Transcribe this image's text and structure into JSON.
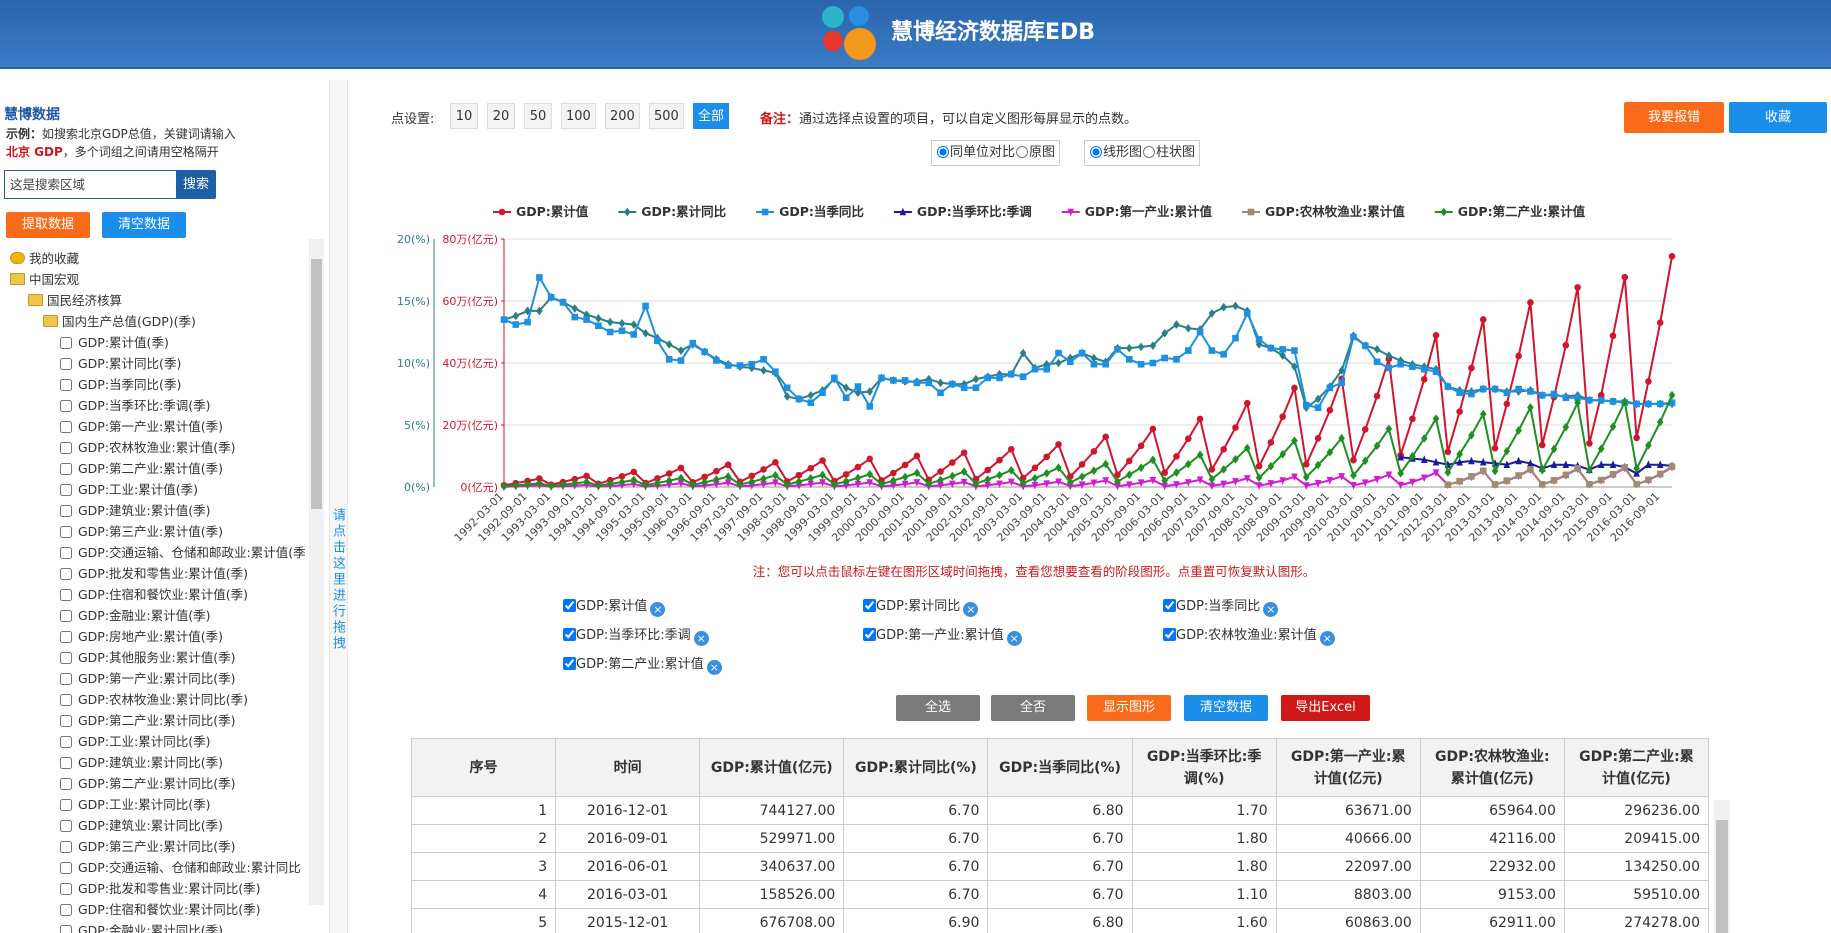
{
  "header": {
    "title": "慧博经济数据库EDB"
  },
  "sidebar": {
    "title": "慧博数据",
    "example_prefix": "示例：",
    "example_text": "如搜索北京GDP总值，关键词请输入",
    "example_keyword": "北京 GDP",
    "example_suffix": "，多个词组之间请用空格隔开",
    "search_placeholder": "这是搜索区域",
    "search_button": "搜索",
    "buttons": [
      "提取数据",
      "清空数据"
    ],
    "tree": {
      "favorites": "我的收藏",
      "root": "中国宏观",
      "group": "国民经济核算",
      "subgroup": "国内生产总值(GDP)(季)",
      "items": [
        "GDP:累计值(季)",
        "GDP:累计同比(季)",
        "GDP:当季同比(季)",
        "GDP:当季环比:季调(季)",
        "GDP:第一产业:累计值(季)",
        "GDP:农林牧渔业:累计值(季)",
        "GDP:第二产业:累计值(季)",
        "GDP:工业:累计值(季)",
        "GDP:建筑业:累计值(季)",
        "GDP:第三产业:累计值(季)",
        "GDP:交通运输、仓储和邮政业:累计值(季",
        "GDP:批发和零售业:累计值(季)",
        "GDP:住宿和餐饮业:累计值(季)",
        "GDP:金融业:累计值(季)",
        "GDP:房地产业:累计值(季)",
        "GDP:其他服务业:累计值(季)",
        "GDP:第一产业:累计同比(季)",
        "GDP:农林牧渔业:累计同比(季)",
        "GDP:第二产业:累计同比(季)",
        "GDP:工业:累计同比(季)",
        "GDP:建筑业:累计同比(季)",
        "GDP:第二产业:累计同比(季)",
        "GDP:工业:累计同比(季)",
        "GDP:建筑业:累计同比(季)",
        "GDP:第三产业:累计同比(季)",
        "GDP:交通运输、仓储和邮政业:累计同比",
        "GDP:批发和零售业:累计同比(季)",
        "GDP:住宿和餐饮业:累计同比(季)",
        "GDP:金融业:累计同比(季)"
      ]
    },
    "drag_hint": "请点击这里进行拖拽"
  },
  "controls": {
    "points_label": "点设置:",
    "points_options": [
      "10",
      "20",
      "50",
      "100",
      "200",
      "500",
      "全部"
    ],
    "note_label": "备注：",
    "note_text": "通过选择点设置的项目，可以自定义图形每屏显示的点数。",
    "buttons": [
      "我要报错",
      "收藏"
    ],
    "compare_options": [
      "同单位对比",
      "原图"
    ],
    "chart_type_options": [
      "线形图",
      "柱状图"
    ]
  },
  "chart_data": {
    "type": "line",
    "note": "注：您可以点击鼠标左键在图形区域时间拖拽，查看您想要查看的阶段图形。点重置可恢复默认图形。",
    "grid": true,
    "categories": [
      "1992-03-01",
      null,
      "1992-09-01",
      null,
      "1993-03-01",
      null,
      "1993-09-01",
      null,
      "1994-03-01",
      null,
      "1994-09-01",
      null,
      "1995-03-01",
      null,
      "1995-09-01",
      null,
      "1996-03-01",
      null,
      "1996-09-01",
      null,
      "1997-03-01",
      null,
      "1997-09-01",
      null,
      "1998-03-01",
      null,
      "1998-09-01",
      null,
      "1999-03-01",
      null,
      "1999-09-01",
      null,
      "2000-03-01",
      null,
      "2000-09-01",
      null,
      "2001-03-01",
      null,
      "2001-09-01",
      null,
      "2002-03-01",
      null,
      "2002-09-01",
      null,
      "2003-03-01",
      null,
      "2003-09-01",
      null,
      "2004-03-01",
      null,
      "2004-09-01",
      null,
      "2005-03-01",
      null,
      "2005-09-01",
      null,
      "2006-03-01",
      null,
      "2006-09-01",
      null,
      "2007-03-01",
      null,
      "2007-09-01",
      null,
      "2008-03-01",
      null,
      "2008-09-01",
      null,
      "2009-03-01",
      null,
      "2009-09-01",
      null,
      "2010-03-01",
      null,
      "2010-09-01",
      null,
      "2011-03-01",
      null,
      "2011-09-01",
      null,
      "2012-03-01",
      null,
      "2012-09-01",
      null,
      "2013-03-01",
      null,
      "2013-09-01",
      null,
      "2014-03-01",
      null,
      "2014-09-01",
      null,
      "2015-03-01",
      null,
      "2015-09-01",
      null,
      "2016-03-01",
      null,
      "2016-09-01",
      null
    ],
    "ylim": [
      0,
      20
    ],
    "yticks": [
      {
        "value": 0,
        "label": "0(%)"
      },
      {
        "value": 5,
        "label": "5(%)"
      },
      {
        "value": 10,
        "label": "10(%)"
      },
      {
        "value": 15,
        "label": "15(%)"
      },
      {
        "value": 20,
        "label": "20(%)"
      }
    ],
    "y2lim": [
      0,
      800000
    ],
    "y2ticks": [
      {
        "value": 0,
        "label": "0(亿元)"
      },
      {
        "value": 200000,
        "label": "20万(亿元)"
      },
      {
        "value": 400000,
        "label": "40万(亿元)"
      },
      {
        "value": 600000,
        "label": "60万(亿元)"
      },
      {
        "value": 800000,
        "label": "80万(亿元)"
      }
    ],
    "series": [
      {
        "name": "GDP:累计值",
        "color": "#d0152e",
        "marker": "circle",
        "axis": "y2",
        "values": [
          5711,
          12238,
          19308,
          27195,
          7491,
          16053,
          25328,
          35673,
          10214,
          21887,
          34533,
          48638,
          12881,
          27603,
          43551,
          61340,
          15081,
          32316,
          50988,
          71814,
          16740,
          35872,
          56598,
          79715,
          17891,
          38338,
          60489,
          85196,
          19018,
          40754,
          64300,
          90564,
          21059,
          45126,
          71199,
          100280,
          23281,
          49888,
          78713,
          110863,
          25561,
          54773,
          86419,
          121717,
          28859,
          61840,
          97570,
          137422,
          33986,
          72828,
          114906,
          161840,
          39337,
          84294,
          132996,
          187319,
          46082,
          98748,
          155802,
          219439,
          56749,
          121604,
          191865,
          270232,
          67098,
          143782,
          226856,
          319516,
          73307,
          157086,
          247848,
          349081,
          86736,
          185864,
          293251,
          413030,
          102753,
          220185,
          347404,
          489301,
          113477,
          243165,
          383661,
          540367,
          125001,
          267860,
          422623,
          595244,
          135235,
          289788,
          457222,
          643974,
          140667,
          296244,
          487774,
          676708,
          158526,
          340637,
          529971,
          744127
        ]
      },
      {
        "name": "GDP:累计同比",
        "color": "#2a7f86",
        "marker": "diamond",
        "axis": "y",
        "values": [
          13.5,
          13.8,
          14.2,
          14.2,
          15.3,
          14.9,
          14.4,
          13.9,
          13.6,
          13.3,
          13.2,
          13.1,
          12.4,
          12.0,
          11.5,
          11.0,
          11.5,
          10.9,
          10.3,
          9.9,
          9.7,
          9.6,
          9.4,
          9.2,
          7.3,
          7.1,
          7.4,
          7.8,
          8.7,
          8.0,
          7.6,
          7.7,
          8.8,
          8.6,
          8.5,
          8.5,
          8.7,
          8.4,
          8.3,
          8.3,
          8.7,
          8.9,
          9.1,
          9.1,
          10.8,
          9.6,
          9.9,
          10.0,
          10.4,
          10.8,
          10.4,
          10.1,
          11.2,
          11.2,
          11.3,
          11.4,
          12.4,
          13.1,
          12.8,
          12.7,
          14.0,
          14.5,
          14.6,
          14.2,
          11.5,
          11.2,
          10.6,
          9.7,
          6.4,
          7.1,
          8.1,
          9.4,
          12.2,
          11.4,
          11.1,
          10.6,
          10.2,
          9.9,
          9.7,
          9.5,
          8.1,
          7.8,
          7.7,
          7.9,
          7.9,
          7.7,
          7.7,
          7.8,
          7.4,
          7.4,
          7.3,
          7.4,
          7.0,
          7.0,
          6.9,
          6.9,
          6.7,
          6.7,
          6.7,
          6.7
        ]
      },
      {
        "name": "GDP:当季同比",
        "color": "#1e90e0",
        "marker": "square",
        "axis": "y",
        "values": [
          13.5,
          13.1,
          13.3,
          16.9,
          15.3,
          14.9,
          13.7,
          13.5,
          13.0,
          12.5,
          12.6,
          12.3,
          14.6,
          11.8,
          10.3,
          10.2,
          11.6,
          10.9,
          10.2,
          9.8,
          9.8,
          9.9,
          10.3,
          9.3,
          8.0,
          7.1,
          6.8,
          7.6,
          8.8,
          7.2,
          8.1,
          6.5,
          8.8,
          8.6,
          8.6,
          8.4,
          8.4,
          7.6,
          8.3,
          8.0,
          8.0,
          8.8,
          8.8,
          9.1,
          8.9,
          9.5,
          9.5,
          10.8,
          10.1,
          10.8,
          9.9,
          9.9,
          11.1,
          10.3,
          9.9,
          10.0,
          10.4,
          10.3,
          11.0,
          12.5,
          11.0,
          10.7,
          12.0,
          14.0,
          11.9,
          11.2,
          11.1,
          11.0,
          6.6,
          6.4,
          8.0,
          8.4,
          12.1,
          11.4,
          10.1,
          9.6,
          9.9,
          9.7,
          9.5,
          9.3,
          8.1,
          7.6,
          7.5,
          7.9,
          7.9,
          7.6,
          7.9,
          7.7,
          7.4,
          7.5,
          7.2,
          7.2,
          7.0,
          7.0,
          6.9,
          6.8,
          6.7,
          6.7,
          6.7,
          6.8
        ]
      },
      {
        "name": "GDP:当季环比:季调",
        "color": "#1a1a9c",
        "marker": "triangle",
        "axis": "y",
        "values": [
          null,
          null,
          null,
          null,
          null,
          null,
          null,
          null,
          null,
          null,
          null,
          null,
          null,
          null,
          null,
          null,
          null,
          null,
          null,
          null,
          null,
          null,
          null,
          null,
          null,
          null,
          null,
          null,
          null,
          null,
          null,
          null,
          null,
          null,
          null,
          null,
          null,
          null,
          null,
          null,
          null,
          null,
          null,
          null,
          null,
          null,
          null,
          null,
          null,
          null,
          null,
          null,
          null,
          null,
          null,
          null,
          null,
          null,
          null,
          null,
          null,
          null,
          null,
          null,
          null,
          null,
          null,
          null,
          null,
          null,
          null,
          null,
          null,
          null,
          null,
          null,
          2.4,
          2.3,
          2.2,
          2.0,
          1.8,
          2.0,
          2.1,
          2.0,
          1.9,
          1.8,
          2.1,
          1.9,
          1.5,
          1.8,
          1.8,
          1.7,
          1.4,
          1.8,
          1.8,
          1.6,
          1.1,
          1.8,
          1.8,
          1.7
        ]
      },
      {
        "name": "GDP:第一产业:累计值",
        "color": "#d21bd2",
        "marker": "triangle-down",
        "axis": "y2",
        "values": [
          812,
          2030,
          3712,
          5800,
          964,
          2410,
          4408,
          6887,
          1326,
          3315,
          6061,
          9471,
          1683,
          4207,
          7693,
          12020,
          1943,
          4857,
          8882,
          13878,
          1997,
          4993,
          9130,
          14265,
          2047,
          5116,
          9356,
          14618,
          2037,
          5092,
          9311,
          14548,
          2060,
          5151,
          9418,
          14716,
          2170,
          5426,
          9921,
          15502,
          2267,
          5667,
          10362,
          16190,
          2376,
          5940,
          10861,
          16970,
          2927,
          7316,
          13379,
          20904,
          3053,
          7632,
          13956,
          21806,
          3264,
          8161,
          14923,
          23317,
          3890,
          9726,
          17784,
          27788,
          4585,
          11464,
          20962,
          32753,
          4783,
          11956,
          21863,
          34161,
          5511,
          13777,
          25192,
          39362,
          6463,
          16157,
          29544,
          46163,
          7126,
          17816,
          32577,
          50902,
          7746,
          19365,
          35411,
          55329,
          8168,
          20420,
          37340,
          58344,
          8521,
          21302,
          38952,
          60863,
          8803,
          22097,
          40666,
          63671
        ]
      },
      {
        "name": "GDP:农林牧渔业:累计值",
        "color": "#a08a72",
        "marker": "square",
        "axis": "y2",
        "values": [
          null,
          null,
          null,
          null,
          null,
          null,
          null,
          null,
          null,
          null,
          null,
          null,
          null,
          null,
          null,
          null,
          null,
          null,
          null,
          null,
          null,
          null,
          null,
          null,
          null,
          null,
          null,
          null,
          null,
          null,
          null,
          null,
          null,
          null,
          null,
          null,
          null,
          null,
          null,
          null,
          null,
          null,
          null,
          null,
          null,
          null,
          null,
          null,
          null,
          null,
          null,
          null,
          null,
          null,
          null,
          null,
          null,
          null,
          null,
          null,
          null,
          null,
          null,
          null,
          null,
          null,
          null,
          null,
          null,
          null,
          null,
          null,
          null,
          null,
          null,
          null,
          null,
          null,
          null,
          null,
          7400,
          18800,
          34200,
          52377,
          7900,
          20400,
          37000,
          56967,
          8400,
          21500,
          39100,
          60158,
          8700,
          22400,
          40900,
          62911,
          9153,
          22932,
          42116,
          65964
        ]
      },
      {
        "name": "GDP:第二产业:累计值",
        "color": "#1f8f1f",
        "marker": "diamond",
        "axis": "y2",
        "values": [
          2340,
          5265,
          8307,
          11700,
          3291,
          7404,
          11682,
          16454,
          4489,
          10100,
          15936,
          22445,
          5736,
          12906,
          20362,
          28679,
          6767,
          15226,
          24023,
          33835,
          7509,
          16894,
          26656,
          37543,
          7801,
          17552,
          27693,
          39004,
          8207,
          18465,
          29134,
          41034,
          9111,
          20500,
          32344,
          45555,
          9902,
          22280,
          35154,
          49512,
          10779,
          24254,
          38267,
          53897,
          12487,
          28096,
          44330,
          62436,
          14781,
          33257,
          52472,
          73904,
          17520,
          39419,
          62195,
          87598,
          20744,
          46674,
          73641,
          103720,
          25166,
          56624,
          89340,
          125831,
          29801,
          67051,
          105792,
          149003,
          31528,
          70938,
          111924,
          157639,
          37477,
          84322,
          133042,
          187383,
          44083,
          99186,
          156493,
          220413,
          47032,
          105823,
          166965,
          235162,
          51362,
          115565,
          182335,
          256810,
          54353,
          122294,
          192953,
          271765,
          54856,
          123425,
          194737,
          274278,
          59510,
          134250,
          209415,
          296236
        ]
      }
    ]
  },
  "actions": [
    "全选",
    "全否",
    "显示图形",
    "清空数据",
    "导出Excel"
  ],
  "table": {
    "headers": [
      "序号",
      "时间",
      "GDP:累计值(亿元)",
      "GDP:累计同比(%)",
      "GDP:当季同比(%)",
      "GDP:当季环比:季调(%)",
      "GDP:第一产业:累计值(亿元)",
      "GDP:农林牧渔业:累计值(亿元)",
      "GDP:第二产业:累计值(亿元)"
    ],
    "rows": [
      [
        "1",
        "2016-12-01",
        "744127.00",
        "6.70",
        "6.80",
        "1.70",
        "63671.00",
        "65964.00",
        "296236.00"
      ],
      [
        "2",
        "2016-09-01",
        "529971.00",
        "6.70",
        "6.70",
        "1.80",
        "40666.00",
        "42116.00",
        "209415.00"
      ],
      [
        "3",
        "2016-06-01",
        "340637.00",
        "6.70",
        "6.70",
        "1.80",
        "22097.00",
        "22932.00",
        "134250.00"
      ],
      [
        "4",
        "2016-03-01",
        "158526.00",
        "6.70",
        "6.70",
        "1.10",
        "8803.00",
        "9153.00",
        "59510.00"
      ],
      [
        "5",
        "2015-12-01",
        "676708.00",
        "6.90",
        "6.80",
        "1.60",
        "60863.00",
        "62911.00",
        "274278.00"
      ]
    ]
  }
}
